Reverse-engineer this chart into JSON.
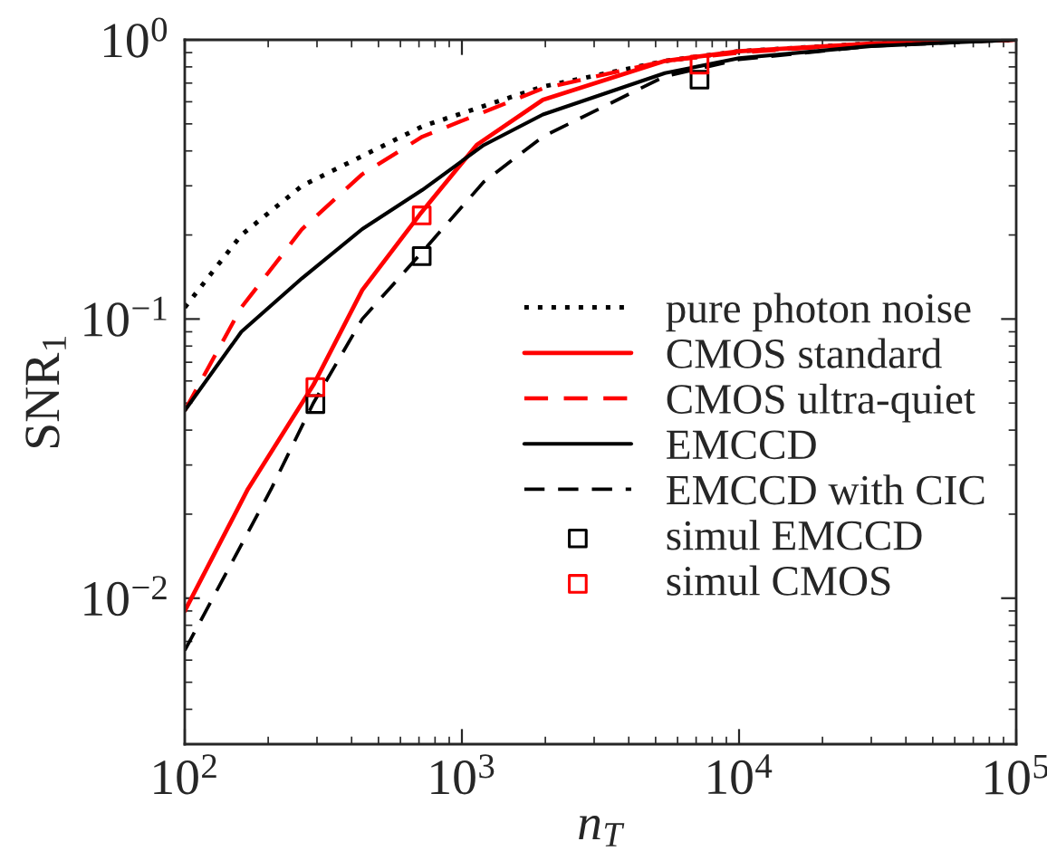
{
  "chart_data": {
    "type": "line",
    "xlabel": "n$_{T}$",
    "ylabel": "SNR$_{1}$",
    "log": "xy",
    "xlim": [
      100,
      100000
    ],
    "ylim": [
      0.003,
      1
    ],
    "xticks": [
      {
        "value": 100,
        "label": "10$^{2}$"
      },
      {
        "value": 1000,
        "label": "10$^{3}$"
      },
      {
        "value": 10000,
        "label": "10$^{4}$"
      },
      {
        "value": 100000,
        "label": "10$^{5}$"
      }
    ],
    "yticks": [
      {
        "value": 0.01,
        "label": "10$^{−2}$"
      },
      {
        "value": 0.1,
        "label": "10$^{−1}$"
      },
      {
        "value": 1,
        "label": "10$^{0}$"
      }
    ],
    "legend": "right",
    "grid": false,
    "series": [
      {
        "name": "pure photon noise",
        "color": "#000000",
        "line_style": "dotted",
        "marker": "none",
        "x": [
          100,
          160,
          265,
          720,
          1960,
          5400,
          10000,
          30000,
          100000
        ],
        "values": [
          0.11,
          0.2,
          0.3,
          0.49,
          0.68,
          0.84,
          0.91,
          0.97,
          1.0
        ]
      },
      {
        "name": "CMOS standard",
        "color": "#ff0000",
        "line_style": "solid",
        "marker": "none",
        "x": [
          100,
          169,
          291,
          437,
          705,
          1130,
          1960,
          5400,
          10000,
          30000,
          100000
        ],
        "values": [
          0.009,
          0.0246,
          0.058,
          0.127,
          0.237,
          0.42,
          0.61,
          0.84,
          0.91,
          0.97,
          1.0
        ]
      },
      {
        "name": "CMOS ultra-quiet",
        "color": "#ff0000",
        "line_style": "dashed",
        "marker": "none",
        "x": [
          100,
          160,
          265,
          437,
          720,
          1960,
          5400,
          10000,
          30000,
          100000
        ],
        "values": [
          0.047,
          0.11,
          0.21,
          0.33,
          0.45,
          0.67,
          0.84,
          0.9,
          0.97,
          1.0
        ]
      },
      {
        "name": "EMCCD",
        "color": "#000000",
        "line_style": "solid",
        "marker": "none",
        "x": [
          100,
          160,
          265,
          437,
          720,
          1200,
          1960,
          5400,
          10000,
          30000,
          100000
        ],
        "values": [
          0.047,
          0.09,
          0.14,
          0.21,
          0.29,
          0.42,
          0.54,
          0.76,
          0.86,
          0.95,
          1.0
        ]
      },
      {
        "name": "EMCCD with CIC",
        "color": "#000000",
        "line_style": "dashed",
        "marker": "none",
        "x": [
          100,
          205,
          291,
          437,
          705,
          1200,
          1960,
          5400,
          10000,
          30000,
          100000
        ],
        "values": [
          0.0065,
          0.0246,
          0.05,
          0.1,
          0.17,
          0.31,
          0.45,
          0.74,
          0.85,
          0.95,
          1.0
        ]
      },
      {
        "name": "simul EMCCD",
        "type": "scatter",
        "color": "#000000",
        "marker": "square",
        "x": [
          296,
          716,
          7200
        ],
        "values": [
          0.0496,
          0.168,
          0.72
        ]
      },
      {
        "name": "simul CMOS",
        "type": "scatter",
        "color": "#ff0000",
        "marker": "square",
        "x": [
          296,
          716,
          7200
        ],
        "values": [
          0.057,
          0.235,
          0.815
        ]
      }
    ]
  }
}
